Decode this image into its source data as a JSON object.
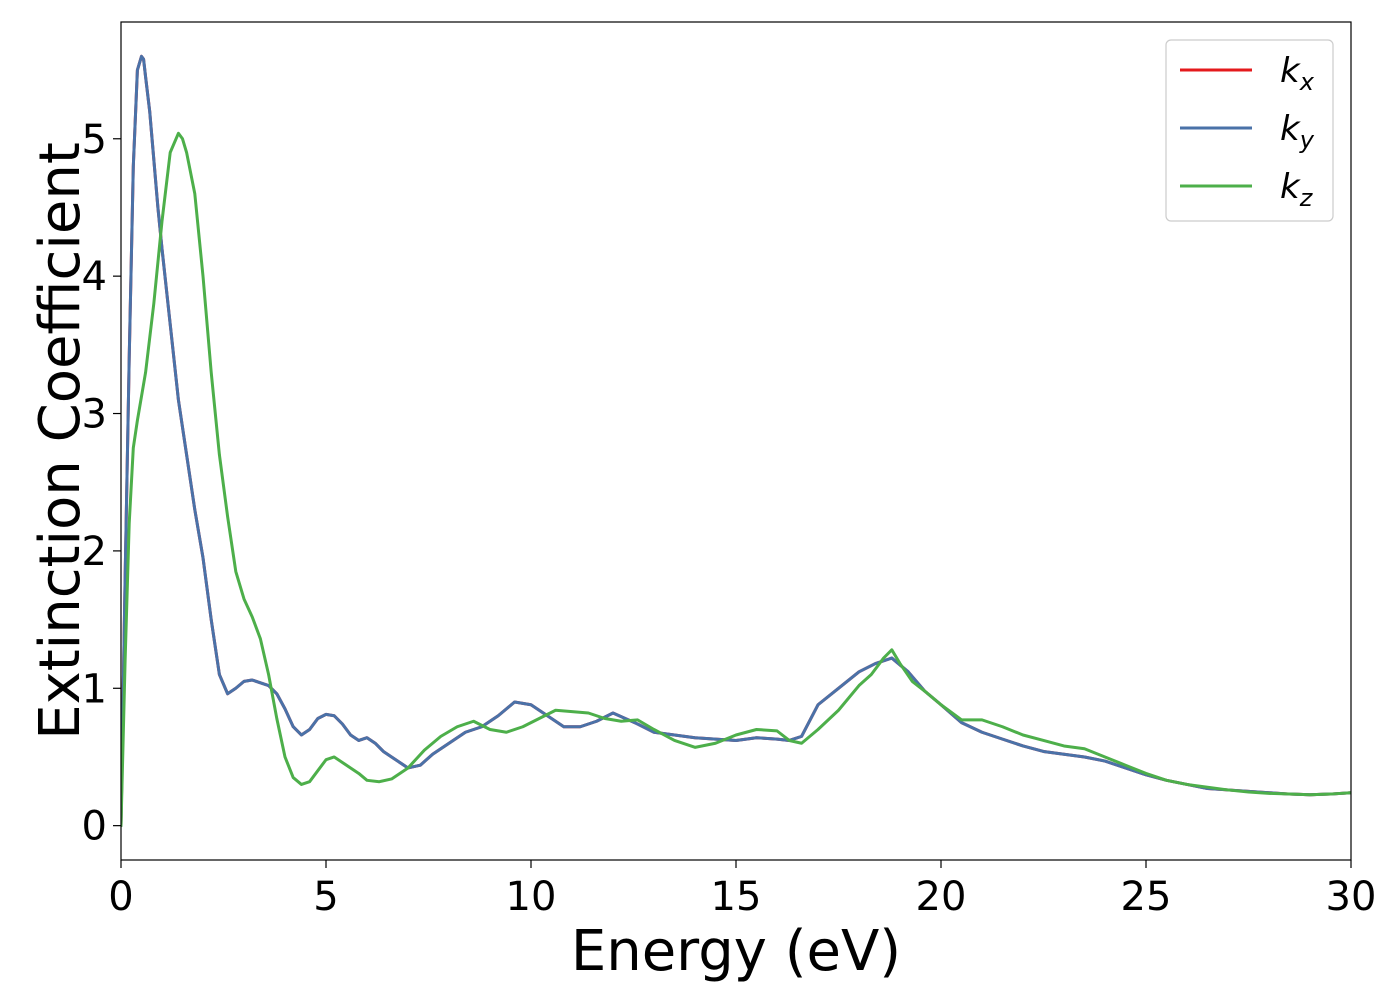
{
  "chart_data": {
    "type": "line",
    "xlabel": "Energy (eV)",
    "ylabel": "Extinction Coefficient",
    "xlim": [
      0,
      30
    ],
    "ylim": [
      -0.25,
      5.85
    ],
    "xticks": [
      0,
      5,
      10,
      15,
      20,
      25,
      30
    ],
    "yticks": [
      0,
      1,
      2,
      3,
      4,
      5
    ],
    "grid": false,
    "legend_position": "top-right",
    "series": [
      {
        "name": "k_x",
        "label_main": "k",
        "label_sub": "x",
        "color": "#e41a1c",
        "x": [
          0.0,
          0.1,
          0.2,
          0.3,
          0.4,
          0.5,
          0.55,
          0.6,
          0.7,
          0.8,
          0.9,
          1.0,
          1.2,
          1.4,
          1.6,
          1.8,
          2.0,
          2.2,
          2.4,
          2.6,
          2.8,
          3.0,
          3.2,
          3.4,
          3.6,
          3.8,
          4.0,
          4.2,
          4.4,
          4.6,
          4.8,
          5.0,
          5.2,
          5.4,
          5.6,
          5.8,
          6.0,
          6.2,
          6.4,
          6.6,
          6.8,
          7.0,
          7.3,
          7.6,
          8.0,
          8.4,
          8.8,
          9.2,
          9.6,
          10.0,
          10.4,
          10.8,
          11.2,
          11.6,
          12.0,
          12.3,
          12.6,
          13.0,
          13.5,
          14.0,
          14.5,
          15.0,
          15.5,
          16.0,
          16.3,
          16.6,
          17.0,
          17.5,
          18.0,
          18.4,
          18.8,
          19.2,
          19.6,
          20.0,
          20.5,
          21.0,
          21.5,
          22.0,
          22.5,
          23.0,
          23.5,
          24.0,
          24.5,
          25.0,
          25.5,
          26.0,
          26.5,
          27.0,
          27.5,
          28.0,
          28.5,
          29.0,
          29.5,
          30.0
        ],
        "values": [
          0.0,
          1.8,
          3.4,
          4.8,
          5.5,
          5.6,
          5.58,
          5.45,
          5.2,
          4.85,
          4.5,
          4.2,
          3.65,
          3.1,
          2.7,
          2.3,
          1.95,
          1.5,
          1.1,
          0.96,
          1.0,
          1.05,
          1.06,
          1.04,
          1.02,
          0.96,
          0.85,
          0.72,
          0.66,
          0.7,
          0.78,
          0.81,
          0.8,
          0.74,
          0.66,
          0.62,
          0.64,
          0.6,
          0.54,
          0.5,
          0.46,
          0.42,
          0.44,
          0.52,
          0.6,
          0.68,
          0.72,
          0.8,
          0.9,
          0.88,
          0.8,
          0.72,
          0.72,
          0.76,
          0.82,
          0.78,
          0.74,
          0.68,
          0.66,
          0.64,
          0.63,
          0.62,
          0.64,
          0.63,
          0.62,
          0.65,
          0.88,
          1.0,
          1.12,
          1.18,
          1.22,
          1.12,
          0.98,
          0.88,
          0.75,
          0.68,
          0.63,
          0.58,
          0.54,
          0.52,
          0.5,
          0.47,
          0.42,
          0.37,
          0.33,
          0.3,
          0.27,
          0.26,
          0.25,
          0.24,
          0.23,
          0.225,
          0.23,
          0.24
        ]
      },
      {
        "name": "k_y",
        "label_main": "k",
        "label_sub": "y",
        "color": "#4a72a8",
        "x": [
          0.0,
          0.1,
          0.2,
          0.3,
          0.4,
          0.5,
          0.55,
          0.6,
          0.7,
          0.8,
          0.9,
          1.0,
          1.2,
          1.4,
          1.6,
          1.8,
          2.0,
          2.2,
          2.4,
          2.6,
          2.8,
          3.0,
          3.2,
          3.4,
          3.6,
          3.8,
          4.0,
          4.2,
          4.4,
          4.6,
          4.8,
          5.0,
          5.2,
          5.4,
          5.6,
          5.8,
          6.0,
          6.2,
          6.4,
          6.6,
          6.8,
          7.0,
          7.3,
          7.6,
          8.0,
          8.4,
          8.8,
          9.2,
          9.6,
          10.0,
          10.4,
          10.8,
          11.2,
          11.6,
          12.0,
          12.3,
          12.6,
          13.0,
          13.5,
          14.0,
          14.5,
          15.0,
          15.5,
          16.0,
          16.3,
          16.6,
          17.0,
          17.5,
          18.0,
          18.4,
          18.8,
          19.2,
          19.6,
          20.0,
          20.5,
          21.0,
          21.5,
          22.0,
          22.5,
          23.0,
          23.5,
          24.0,
          24.5,
          25.0,
          25.5,
          26.0,
          26.5,
          27.0,
          27.5,
          28.0,
          28.5,
          29.0,
          29.5,
          30.0
        ],
        "values": [
          0.0,
          1.8,
          3.4,
          4.8,
          5.5,
          5.6,
          5.58,
          5.45,
          5.2,
          4.85,
          4.5,
          4.2,
          3.65,
          3.1,
          2.7,
          2.3,
          1.95,
          1.5,
          1.1,
          0.96,
          1.0,
          1.05,
          1.06,
          1.04,
          1.02,
          0.96,
          0.85,
          0.72,
          0.66,
          0.7,
          0.78,
          0.81,
          0.8,
          0.74,
          0.66,
          0.62,
          0.64,
          0.6,
          0.54,
          0.5,
          0.46,
          0.42,
          0.44,
          0.52,
          0.6,
          0.68,
          0.72,
          0.8,
          0.9,
          0.88,
          0.8,
          0.72,
          0.72,
          0.76,
          0.82,
          0.78,
          0.74,
          0.68,
          0.66,
          0.64,
          0.63,
          0.62,
          0.64,
          0.63,
          0.62,
          0.65,
          0.88,
          1.0,
          1.12,
          1.18,
          1.22,
          1.12,
          0.98,
          0.88,
          0.75,
          0.68,
          0.63,
          0.58,
          0.54,
          0.52,
          0.5,
          0.47,
          0.42,
          0.37,
          0.33,
          0.3,
          0.27,
          0.26,
          0.25,
          0.24,
          0.23,
          0.225,
          0.23,
          0.24
        ]
      },
      {
        "name": "k_z",
        "label_main": "k",
        "label_sub": "z",
        "color": "#4daf4a",
        "x": [
          0.0,
          0.1,
          0.2,
          0.3,
          0.4,
          0.6,
          0.8,
          1.0,
          1.2,
          1.4,
          1.5,
          1.6,
          1.8,
          2.0,
          2.2,
          2.4,
          2.6,
          2.8,
          3.0,
          3.2,
          3.4,
          3.6,
          3.8,
          4.0,
          4.2,
          4.4,
          4.6,
          4.8,
          5.0,
          5.2,
          5.4,
          5.6,
          5.8,
          6.0,
          6.3,
          6.6,
          7.0,
          7.4,
          7.8,
          8.2,
          8.6,
          9.0,
          9.4,
          9.8,
          10.2,
          10.6,
          11.0,
          11.4,
          11.8,
          12.2,
          12.6,
          13.0,
          13.5,
          14.0,
          14.5,
          15.0,
          15.5,
          16.0,
          16.3,
          16.6,
          17.0,
          17.5,
          18.0,
          18.3,
          18.6,
          18.8,
          19.0,
          19.3,
          19.6,
          20.0,
          20.5,
          21.0,
          21.5,
          22.0,
          22.5,
          23.0,
          23.5,
          24.0,
          24.5,
          25.0,
          25.5,
          26.0,
          26.5,
          27.0,
          27.5,
          28.0,
          28.5,
          29.0,
          29.5,
          30.0
        ],
        "values": [
          0.0,
          1.2,
          2.2,
          2.75,
          2.95,
          3.3,
          3.8,
          4.4,
          4.9,
          5.04,
          5.0,
          4.9,
          4.6,
          4.0,
          3.3,
          2.7,
          2.25,
          1.85,
          1.65,
          1.52,
          1.36,
          1.1,
          0.78,
          0.5,
          0.35,
          0.3,
          0.32,
          0.4,
          0.48,
          0.5,
          0.46,
          0.42,
          0.38,
          0.33,
          0.32,
          0.34,
          0.42,
          0.55,
          0.65,
          0.72,
          0.76,
          0.7,
          0.68,
          0.72,
          0.78,
          0.84,
          0.83,
          0.82,
          0.78,
          0.76,
          0.77,
          0.7,
          0.62,
          0.57,
          0.6,
          0.66,
          0.7,
          0.69,
          0.62,
          0.6,
          0.7,
          0.84,
          1.02,
          1.1,
          1.22,
          1.28,
          1.18,
          1.05,
          0.98,
          0.88,
          0.77,
          0.77,
          0.72,
          0.66,
          0.62,
          0.58,
          0.56,
          0.5,
          0.44,
          0.38,
          0.33,
          0.3,
          0.28,
          0.26,
          0.245,
          0.235,
          0.23,
          0.225,
          0.23,
          0.24
        ]
      }
    ]
  }
}
